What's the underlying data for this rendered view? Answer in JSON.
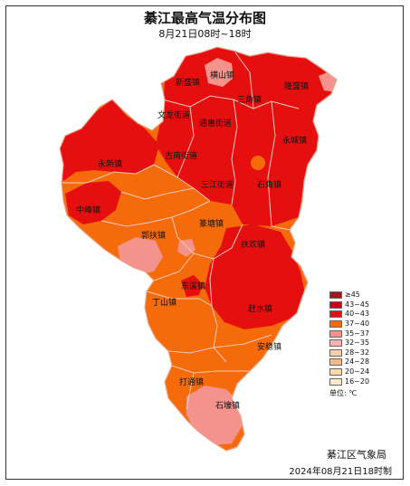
{
  "title": "綦江最高气温分布图",
  "subtitle": "8月21日08时~18时",
  "agency": "綦江区气象局",
  "issued": "2024年08月21日18时制",
  "colors": {
    "t43_45": "#c8001f",
    "t40_43": "#e60f0f",
    "t37_40": "#f56b0a",
    "t35_37": "#f4928c",
    "boundary": "#f2c8bf"
  },
  "legend": {
    "unit_label": "单位: ℃",
    "items": [
      {
        "label": "≥45",
        "color": "#a0181d"
      },
      {
        "label": "43~45",
        "color": "#c8001f"
      },
      {
        "label": "40~43",
        "color": "#e60f0f"
      },
      {
        "label": "37~40",
        "color": "#f56b0a"
      },
      {
        "label": "35~37",
        "color": "#f4928c"
      },
      {
        "label": "32~35",
        "color": "#f6b3b0"
      },
      {
        "label": "28~32",
        "color": "#f7cfa6"
      },
      {
        "label": "24~28",
        "color": "#f8b98a"
      },
      {
        "label": "20~24",
        "color": "#fbd9a8"
      },
      {
        "label": "16~20",
        "color": "#fdeccb"
      }
    ]
  },
  "places": [
    "横山镇",
    "新盛镇",
    "隆盛镇",
    "三角镇",
    "文龙街道",
    "通惠街道",
    "永城镇",
    "古南街道",
    "永新镇",
    "三江街道",
    "石角镇",
    "中峰镇",
    "篆塘镇",
    "郭扶镇",
    "扶欢镇",
    "东溪镇",
    "丁山镇",
    "赶水镇",
    "安稳镇",
    "打通镇",
    "石壕镇"
  ]
}
